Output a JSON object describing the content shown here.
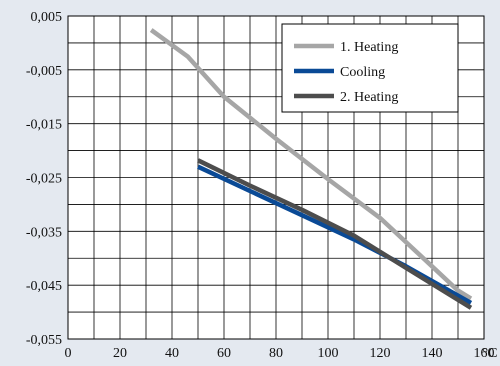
{
  "chart_data": {
    "type": "line",
    "title": "",
    "xlabel": "",
    "ylabel": "",
    "x_unit": "°C",
    "xlim": [
      0,
      160
    ],
    "ylim": [
      -0.055,
      0.005
    ],
    "x_ticks": [
      "0",
      "20",
      "40",
      "60",
      "80",
      "100",
      "120",
      "140",
      "160"
    ],
    "y_ticks": [
      "0,005",
      "-0,005",
      "-0,015",
      "-0,025",
      "-0,035",
      "-0,045",
      "-0,055"
    ],
    "grid": true,
    "legend_position": "top-right",
    "series": [
      {
        "name": "1. Heating",
        "color": "#a6a6a6",
        "points": [
          [
            32,
            0.0024
          ],
          [
            38,
            0.0003
          ],
          [
            46,
            -0.0025
          ],
          [
            60,
            -0.01
          ],
          [
            80,
            -0.0178
          ],
          [
            100,
            -0.0253
          ],
          [
            120,
            -0.0325
          ],
          [
            130,
            -0.037
          ],
          [
            140,
            -0.0415
          ],
          [
            150,
            -0.046
          ],
          [
            155,
            -0.0475
          ]
        ]
      },
      {
        "name": "Cooling",
        "color": "#0a4a96",
        "points": [
          [
            50,
            -0.023
          ],
          [
            70,
            -0.0275
          ],
          [
            90,
            -0.032
          ],
          [
            110,
            -0.0365
          ],
          [
            130,
            -0.0415
          ],
          [
            155,
            -0.0483
          ]
        ]
      },
      {
        "name": "2. Heating",
        "color": "#4d4d4d",
        "points": [
          [
            50,
            -0.0218
          ],
          [
            70,
            -0.0265
          ],
          [
            90,
            -0.031
          ],
          [
            110,
            -0.0358
          ],
          [
            130,
            -0.0418
          ],
          [
            155,
            -0.0492
          ]
        ]
      }
    ]
  }
}
